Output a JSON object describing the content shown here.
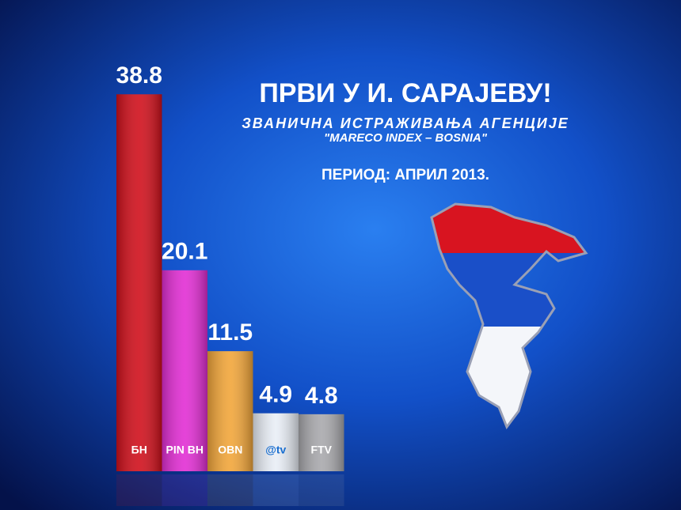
{
  "chart_data": {
    "type": "bar",
    "title": "ПРВИ У И. САРАЈЕВУ!",
    "subtitle": "ЗВАНИЧНА ИСТРАЖИВАЊА АГЕНЦИЈЕ",
    "source": "\"MARECO INDEX – BOSNIA\"",
    "period": "ПЕРИОД: АПРИЛ 2013.",
    "categories": [
      "БН",
      "PIN BH",
      "OBN",
      "@tv",
      "FTV"
    ],
    "values": [
      38.8,
      20.1,
      11.5,
      4.9,
      4.8
    ],
    "colors": [
      "#d0101c",
      "#e22ed4",
      "#f2a63a",
      "#e9eef6",
      "#a9a9ad"
    ]
  }
}
